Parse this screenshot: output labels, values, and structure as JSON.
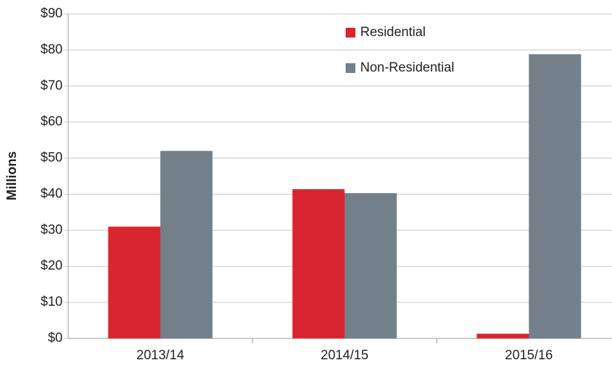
{
  "chart_data": {
    "type": "bar",
    "y_axis_label": "Millions",
    "categories": [
      "2013/14",
      "2014/15",
      "2015/16"
    ],
    "series": [
      {
        "name": "Residential",
        "color": "#d9252f",
        "values": [
          31.0,
          41.4,
          1.3
        ]
      },
      {
        "name": "Non-Residential",
        "color": "#737f89",
        "values": [
          52.0,
          40.3,
          78.8
        ]
      }
    ],
    "ylim": [
      0,
      90
    ],
    "yticks": [
      {
        "value": 0,
        "label": "$0"
      },
      {
        "value": 10,
        "label": "$10"
      },
      {
        "value": 20,
        "label": "$20"
      },
      {
        "value": 30,
        "label": "$30"
      },
      {
        "value": 40,
        "label": "$40"
      },
      {
        "value": 50,
        "label": "$50"
      },
      {
        "value": 60,
        "label": "$60"
      },
      {
        "value": 70,
        "label": "$70"
      },
      {
        "value": 80,
        "label": "$80"
      },
      {
        "value": 90,
        "label": "$90"
      }
    ],
    "grid": true,
    "legend": "top"
  }
}
